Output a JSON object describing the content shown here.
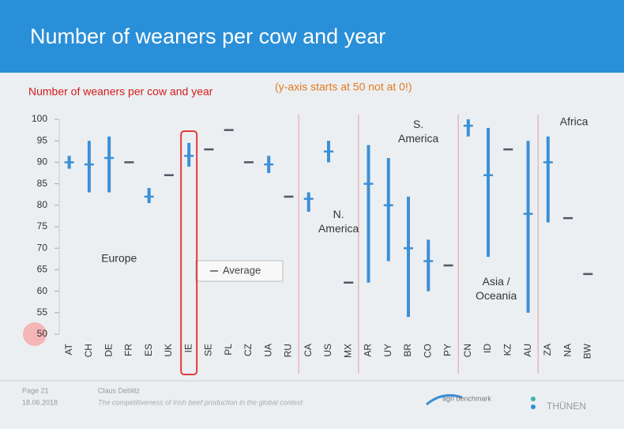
{
  "header": {
    "title": "Number of weaners per cow and year"
  },
  "chart_data": {
    "type": "range",
    "title": "Number of weaners per cow and year",
    "subtitle": "(y-axis starts at 50 not at 0!)",
    "categories": [
      "AT",
      "CH",
      "DE",
      "FR",
      "ES",
      "UK",
      "IE",
      "SE",
      "PL",
      "CZ",
      "UA",
      "RU",
      "CA",
      "US",
      "MX",
      "AR",
      "UY",
      "BR",
      "CO",
      "PY",
      "CN",
      "ID",
      "KZ",
      "AU",
      "ZA",
      "NA",
      "BW"
    ],
    "values": [
      90,
      89.5,
      91,
      90,
      82,
      87,
      91.5,
      93,
      97.5,
      90,
      89.5,
      82,
      81.5,
      92.5,
      62,
      85,
      80,
      70,
      67,
      66,
      98.5,
      87,
      93,
      78,
      90,
      77,
      64
    ],
    "min": [
      88.5,
      83,
      83,
      null,
      80.5,
      null,
      89,
      null,
      null,
      null,
      87.5,
      null,
      78.5,
      90,
      null,
      62,
      67,
      54,
      60,
      null,
      96,
      68,
      null,
      55,
      76,
      null,
      null
    ],
    "max": [
      91.5,
      95,
      96,
      null,
      84,
      null,
      94.5,
      null,
      null,
      null,
      91.5,
      null,
      83,
      95,
      null,
      94,
      91,
      82,
      72,
      null,
      100,
      98,
      null,
      95,
      96,
      null,
      null
    ],
    "color": "#3a8fd8",
    "legend": "Average",
    "highlight": "IE",
    "regions": [
      "Europe",
      "N. America",
      "S. America",
      "Asia / Oceania",
      "Africa"
    ],
    "ylim": [
      50,
      100
    ],
    "yticks": [
      50,
      55,
      60,
      65,
      70,
      75,
      80,
      85,
      90,
      95,
      100
    ]
  },
  "footer": {
    "page": "Page 21",
    "date": "18.06.2018",
    "author": "Claus Deblitz",
    "subject": "The competitiveness of Irish beef production in the global context",
    "logo1": "agri benchmark",
    "logo2": "THÜNEN"
  }
}
